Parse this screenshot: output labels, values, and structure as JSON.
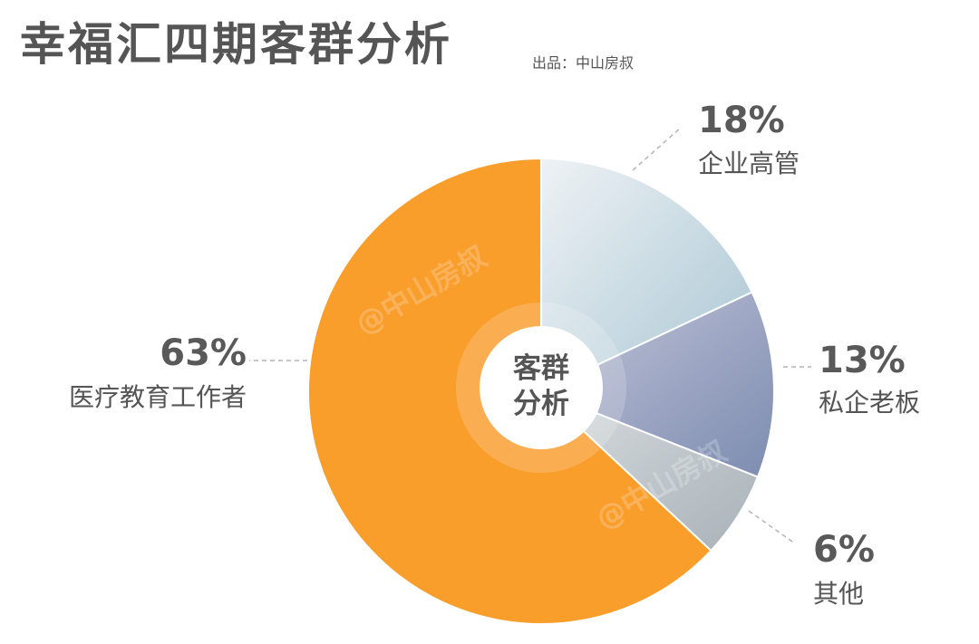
{
  "header": {
    "title": "幸福汇四期客群分析",
    "source": "出品：中山房叔"
  },
  "center_label": [
    "客群",
    "分析"
  ],
  "watermark": "@中山房叔",
  "chart_data": {
    "type": "pie",
    "title": "幸福汇四期客群分析",
    "unit": "%",
    "slices": [
      {
        "label": "企业高管",
        "value": 18,
        "display": "18%",
        "color": "#c3d7e0"
      },
      {
        "label": "私企老板",
        "value": 13,
        "display": "13%",
        "color": "#97a3c1"
      },
      {
        "label": "其他",
        "value": 6,
        "display": "6%",
        "color": "#c1c8cb"
      },
      {
        "label": "医疗教育工作者",
        "value": 63,
        "display": "63%",
        "color": "#f99d2b"
      }
    ],
    "start_angle_deg": 0,
    "direction": "clockwise"
  }
}
